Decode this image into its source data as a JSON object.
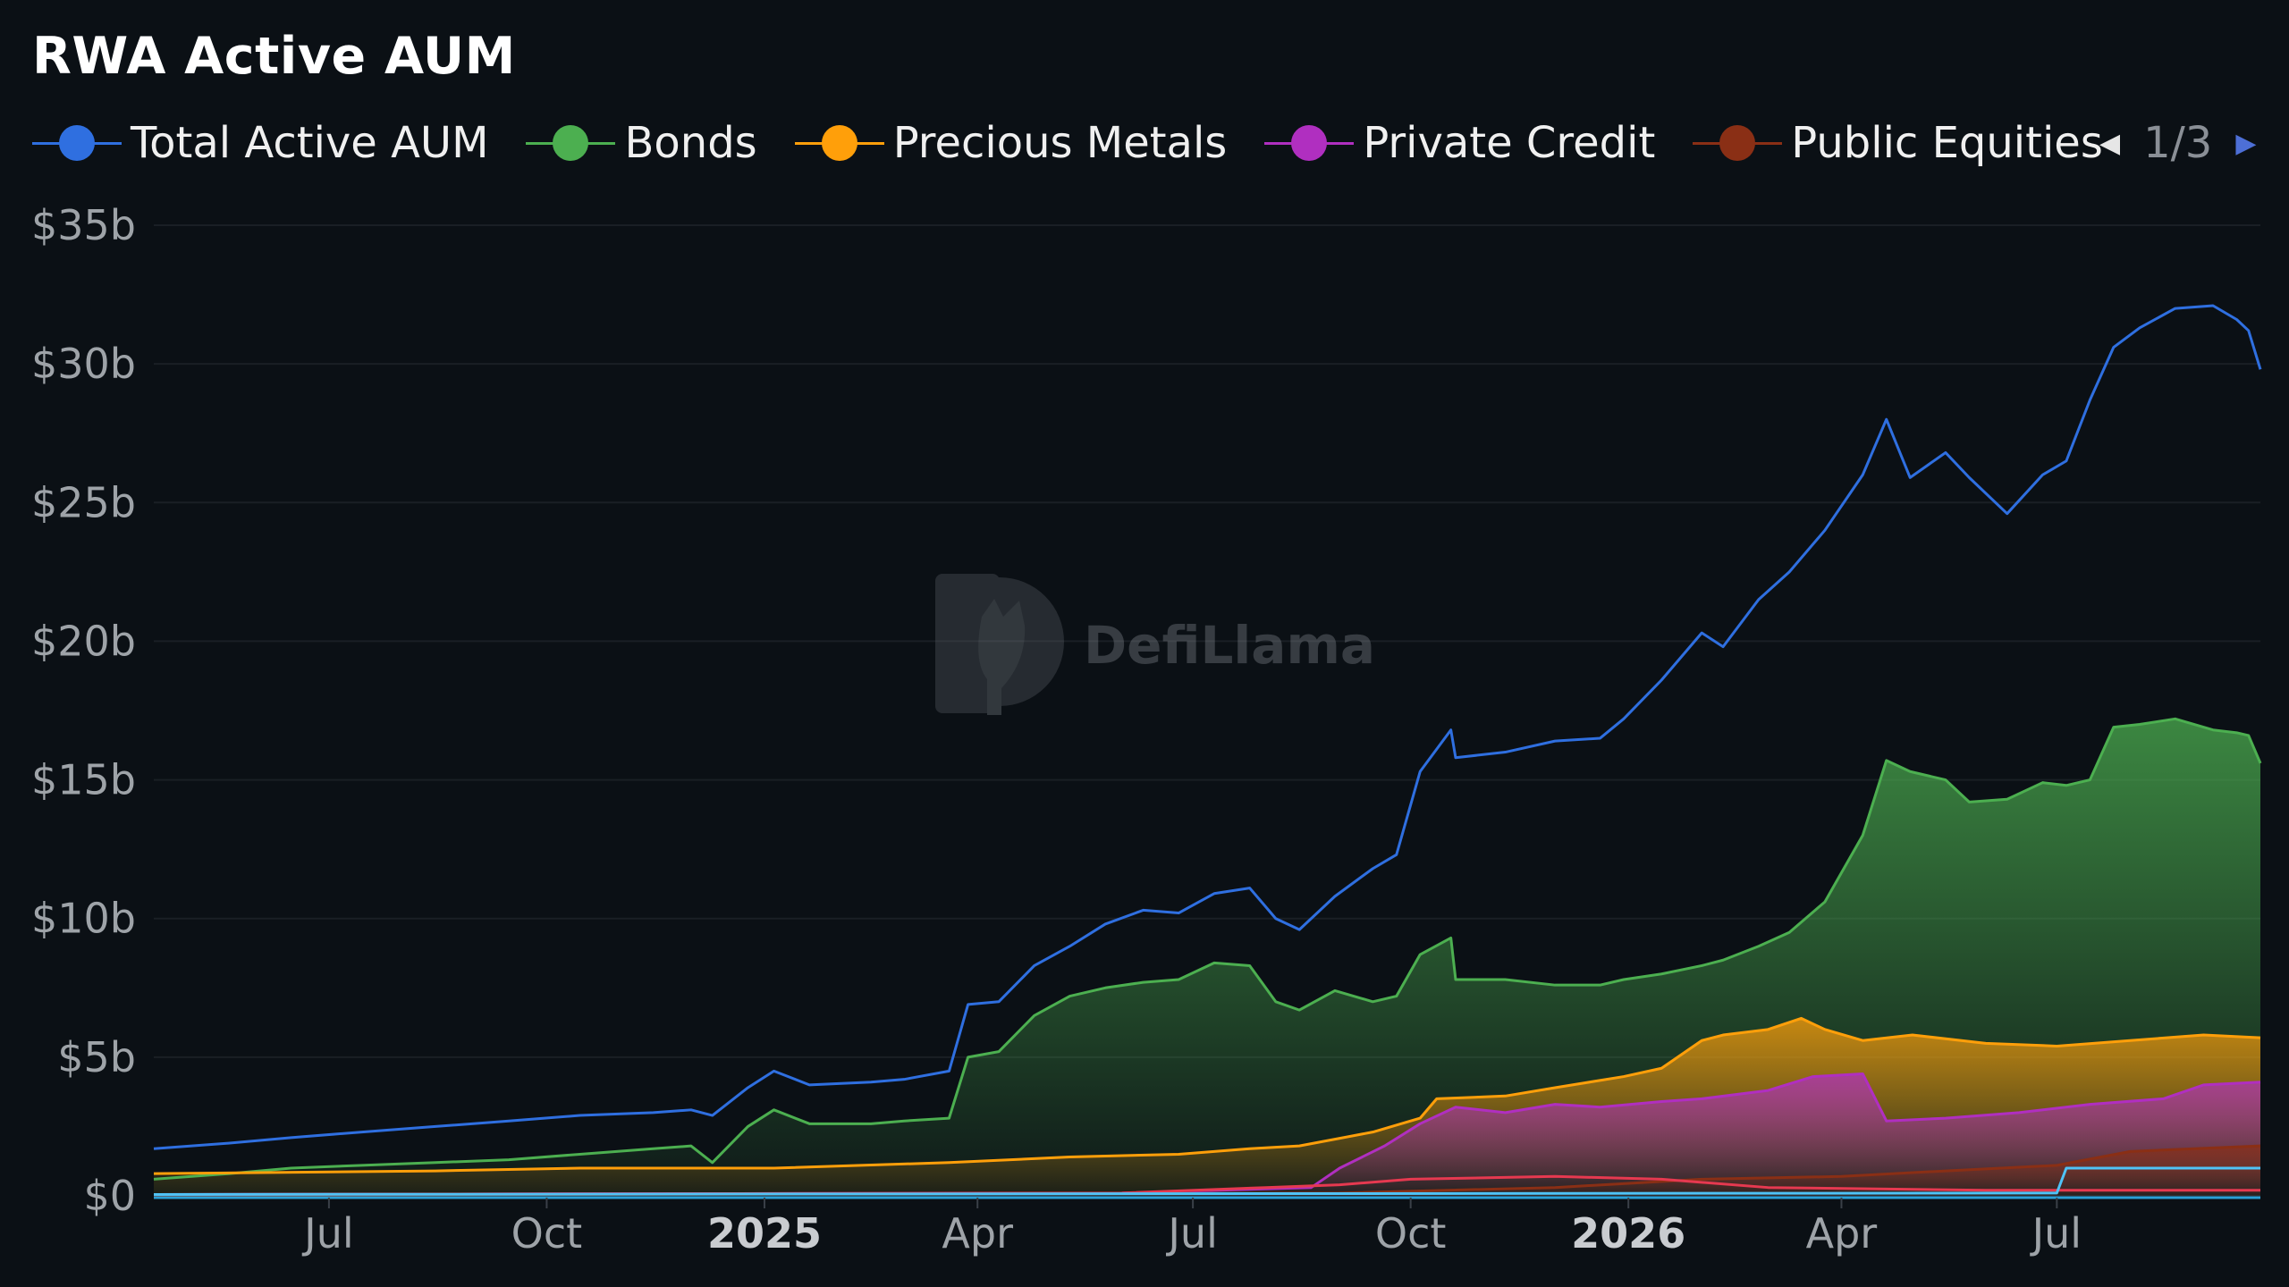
{
  "title": "RWA Active AUM",
  "legend": {
    "items": [
      {
        "label": "Total Active AUM",
        "color": "#2f6fe0"
      },
      {
        "label": "Bonds",
        "color": "#4caf50"
      },
      {
        "label": "Precious Metals",
        "color": "#ff9f0a"
      },
      {
        "label": "Private Credit",
        "color": "#b02fc0"
      },
      {
        "label": "Public Equities",
        "color": "#8a2f15"
      }
    ],
    "page": "1/3"
  },
  "watermark": "DefiLlama",
  "chart_data": {
    "type": "area",
    "title": "RWA Active AUM",
    "xlabel": "",
    "ylabel": "",
    "ylim": [
      0,
      35
    ],
    "grid": true,
    "legend_position": "top",
    "y_ticks": [
      "$0",
      "$5b",
      "$10b",
      "$15b",
      "$20b",
      "$25b",
      "$30b",
      "$35b"
    ],
    "x_ticks": [
      {
        "label": "Jul",
        "date": "2024-07-01",
        "bold": false
      },
      {
        "label": "Oct",
        "date": "2024-10-01",
        "bold": false
      },
      {
        "label": "2025",
        "date": "2025-01-01",
        "bold": true
      },
      {
        "label": "Apr",
        "date": "2025-04-01",
        "bold": false
      },
      {
        "label": "Jul",
        "date": "2025-07-01",
        "bold": false
      },
      {
        "label": "Oct",
        "date": "2025-10-01",
        "bold": false
      },
      {
        "label": "2026",
        "date": "2026-01-01",
        "bold": true
      },
      {
        "label": "Apr",
        "date": "2026-04-01",
        "bold": false
      },
      {
        "label": "Jul",
        "date": "2026-07-01",
        "bold": false
      }
    ],
    "x_range": [
      "2024-04-18",
      "2026-09-25"
    ],
    "series": [
      {
        "name": "Total Active AUM",
        "color": "#2f6fe0",
        "fill": false,
        "points": [
          [
            "2024-04-18",
            1.7
          ],
          [
            "2024-05-20",
            1.9
          ],
          [
            "2024-06-15",
            2.1
          ],
          [
            "2024-07-15",
            2.3
          ],
          [
            "2024-08-15",
            2.5
          ],
          [
            "2024-09-15",
            2.7
          ],
          [
            "2024-10-15",
            2.9
          ],
          [
            "2024-11-15",
            3.0
          ],
          [
            "2024-12-01",
            3.1
          ],
          [
            "2024-12-10",
            2.9
          ],
          [
            "2024-12-25",
            3.9
          ],
          [
            "2025-01-05",
            4.5
          ],
          [
            "2025-01-20",
            4.0
          ],
          [
            "2025-02-15",
            4.1
          ],
          [
            "2025-03-01",
            4.2
          ],
          [
            "2025-03-20",
            4.5
          ],
          [
            "2025-03-28",
            6.9
          ],
          [
            "2025-04-10",
            7.0
          ],
          [
            "2025-04-25",
            8.3
          ],
          [
            "2025-05-10",
            9.0
          ],
          [
            "2025-05-25",
            9.8
          ],
          [
            "2025-06-10",
            10.3
          ],
          [
            "2025-06-25",
            10.2
          ],
          [
            "2025-07-10",
            10.9
          ],
          [
            "2025-07-25",
            11.1
          ],
          [
            "2025-08-05",
            10.0
          ],
          [
            "2025-08-15",
            9.6
          ],
          [
            "2025-08-30",
            10.8
          ],
          [
            "2025-09-15",
            11.8
          ],
          [
            "2025-09-25",
            12.3
          ],
          [
            "2025-10-05",
            15.3
          ],
          [
            "2025-10-18",
            16.8
          ],
          [
            "2025-10-20",
            15.8
          ],
          [
            "2025-11-10",
            16.0
          ],
          [
            "2025-12-01",
            16.4
          ],
          [
            "2025-12-20",
            16.5
          ],
          [
            "2025-12-30",
            17.2
          ],
          [
            "2026-01-15",
            18.6
          ],
          [
            "2026-02-01",
            20.3
          ],
          [
            "2026-02-10",
            19.8
          ],
          [
            "2026-02-25",
            21.5
          ],
          [
            "2026-03-10",
            22.5
          ],
          [
            "2026-03-25",
            24.0
          ],
          [
            "2026-04-10",
            26.0
          ],
          [
            "2026-04-20",
            28.0
          ],
          [
            "2026-04-30",
            25.9
          ],
          [
            "2026-05-15",
            26.8
          ],
          [
            "2026-05-25",
            25.9
          ],
          [
            "2026-06-10",
            24.6
          ],
          [
            "2026-06-25",
            26.0
          ],
          [
            "2026-07-05",
            26.5
          ],
          [
            "2026-07-15",
            28.7
          ],
          [
            "2026-07-25",
            30.6
          ],
          [
            "2026-08-05",
            31.3
          ],
          [
            "2026-08-20",
            32.0
          ],
          [
            "2026-09-05",
            32.1
          ],
          [
            "2026-09-15",
            31.6
          ],
          [
            "2026-09-20",
            31.2
          ],
          [
            "2026-09-25",
            29.8
          ]
        ]
      },
      {
        "name": "Bonds",
        "color": "#4caf50",
        "fill": true,
        "points": [
          [
            "2024-04-18",
            0.6
          ],
          [
            "2024-05-20",
            0.8
          ],
          [
            "2024-06-15",
            1.0
          ],
          [
            "2024-07-15",
            1.1
          ],
          [
            "2024-08-15",
            1.2
          ],
          [
            "2024-09-15",
            1.3
          ],
          [
            "2024-10-15",
            1.5
          ],
          [
            "2024-11-15",
            1.7
          ],
          [
            "2024-12-01",
            1.8
          ],
          [
            "2024-12-10",
            1.2
          ],
          [
            "2024-12-25",
            2.5
          ],
          [
            "2025-01-05",
            3.1
          ],
          [
            "2025-01-20",
            2.6
          ],
          [
            "2025-02-15",
            2.6
          ],
          [
            "2025-03-01",
            2.7
          ],
          [
            "2025-03-20",
            2.8
          ],
          [
            "2025-03-28",
            5.0
          ],
          [
            "2025-04-10",
            5.2
          ],
          [
            "2025-04-25",
            6.5
          ],
          [
            "2025-05-10",
            7.2
          ],
          [
            "2025-05-25",
            7.5
          ],
          [
            "2025-06-10",
            7.7
          ],
          [
            "2025-06-25",
            7.8
          ],
          [
            "2025-07-10",
            8.4
          ],
          [
            "2025-07-25",
            8.3
          ],
          [
            "2025-08-05",
            7.0
          ],
          [
            "2025-08-15",
            6.7
          ],
          [
            "2025-08-30",
            7.4
          ],
          [
            "2025-09-15",
            7.0
          ],
          [
            "2025-09-25",
            7.2
          ],
          [
            "2025-10-05",
            8.7
          ],
          [
            "2025-10-18",
            9.3
          ],
          [
            "2025-10-20",
            7.8
          ],
          [
            "2025-11-10",
            7.8
          ],
          [
            "2025-12-01",
            7.6
          ],
          [
            "2025-12-20",
            7.6
          ],
          [
            "2025-12-30",
            7.8
          ],
          [
            "2026-01-15",
            8.0
          ],
          [
            "2026-02-01",
            8.3
          ],
          [
            "2026-02-10",
            8.5
          ],
          [
            "2026-02-25",
            9.0
          ],
          [
            "2026-03-10",
            9.5
          ],
          [
            "2026-03-25",
            10.6
          ],
          [
            "2026-04-10",
            13.0
          ],
          [
            "2026-04-20",
            15.7
          ],
          [
            "2026-04-30",
            15.3
          ],
          [
            "2026-05-15",
            15.0
          ],
          [
            "2026-05-25",
            14.2
          ],
          [
            "2026-06-10",
            14.3
          ],
          [
            "2026-06-25",
            14.9
          ],
          [
            "2026-07-05",
            14.8
          ],
          [
            "2026-07-15",
            15.0
          ],
          [
            "2026-07-25",
            16.9
          ],
          [
            "2026-08-05",
            17.0
          ],
          [
            "2026-08-20",
            17.2
          ],
          [
            "2026-09-05",
            16.8
          ],
          [
            "2026-09-15",
            16.7
          ],
          [
            "2026-09-20",
            16.6
          ],
          [
            "2026-09-25",
            15.6
          ]
        ]
      },
      {
        "name": "Precious Metals",
        "color": "#ff9f0a",
        "fill": true,
        "points": [
          [
            "2024-04-18",
            0.8
          ],
          [
            "2024-08-15",
            0.9
          ],
          [
            "2024-10-15",
            1.0
          ],
          [
            "2025-01-05",
            1.0
          ],
          [
            "2025-03-20",
            1.2
          ],
          [
            "2025-05-10",
            1.4
          ],
          [
            "2025-06-25",
            1.5
          ],
          [
            "2025-07-25",
            1.7
          ],
          [
            "2025-08-15",
            1.8
          ],
          [
            "2025-09-15",
            2.3
          ],
          [
            "2025-10-05",
            2.8
          ],
          [
            "2025-10-12",
            3.5
          ],
          [
            "2025-11-10",
            3.6
          ],
          [
            "2025-12-01",
            3.9
          ],
          [
            "2025-12-30",
            4.3
          ],
          [
            "2026-01-15",
            4.6
          ],
          [
            "2026-02-01",
            5.6
          ],
          [
            "2026-02-10",
            5.8
          ],
          [
            "2026-03-01",
            6.0
          ],
          [
            "2026-03-15",
            6.4
          ],
          [
            "2026-03-25",
            6.0
          ],
          [
            "2026-04-10",
            5.6
          ],
          [
            "2026-05-01",
            5.8
          ],
          [
            "2026-06-01",
            5.5
          ],
          [
            "2026-07-01",
            5.4
          ],
          [
            "2026-08-01",
            5.6
          ],
          [
            "2026-09-01",
            5.8
          ],
          [
            "2026-09-25",
            5.7
          ]
        ]
      },
      {
        "name": "Private Credit",
        "color": "#b02fc0",
        "fill": true,
        "points": [
          [
            "2024-04-18",
            0.05
          ],
          [
            "2025-06-01",
            0.1
          ],
          [
            "2025-08-20",
            0.3
          ],
          [
            "2025-09-01",
            1.0
          ],
          [
            "2025-09-20",
            1.8
          ],
          [
            "2025-10-05",
            2.6
          ],
          [
            "2025-10-20",
            3.2
          ],
          [
            "2025-11-10",
            3.0
          ],
          [
            "2025-12-01",
            3.3
          ],
          [
            "2025-12-20",
            3.2
          ],
          [
            "2026-01-15",
            3.4
          ],
          [
            "2026-02-01",
            3.5
          ],
          [
            "2026-03-01",
            3.8
          ],
          [
            "2026-03-20",
            4.3
          ],
          [
            "2026-04-10",
            4.4
          ],
          [
            "2026-04-20",
            2.7
          ],
          [
            "2026-05-15",
            2.8
          ],
          [
            "2026-06-15",
            3.0
          ],
          [
            "2026-07-15",
            3.3
          ],
          [
            "2026-08-15",
            3.5
          ],
          [
            "2026-09-01",
            4.0
          ],
          [
            "2026-09-25",
            4.1
          ]
        ]
      },
      {
        "name": "Public Equities",
        "color": "#8a2f15",
        "fill": true,
        "points": [
          [
            "2024-04-18",
            0.02
          ],
          [
            "2025-09-01",
            0.1
          ],
          [
            "2025-12-01",
            0.3
          ],
          [
            "2026-02-01",
            0.6
          ],
          [
            "2026-04-01",
            0.7
          ],
          [
            "2026-05-15",
            0.9
          ],
          [
            "2026-07-01",
            1.1
          ],
          [
            "2026-08-01",
            1.6
          ],
          [
            "2026-09-25",
            1.8
          ]
        ]
      },
      {
        "name": "",
        "color": "#e63950",
        "fill": false,
        "points": [
          [
            "2024-04-18",
            0.05
          ],
          [
            "2025-06-01",
            0.1
          ],
          [
            "2025-08-01",
            0.3
          ],
          [
            "2025-09-01",
            0.4
          ],
          [
            "2025-10-01",
            0.6
          ],
          [
            "2025-12-01",
            0.7
          ],
          [
            "2026-01-15",
            0.6
          ],
          [
            "2026-03-01",
            0.3
          ],
          [
            "2026-06-01",
            0.2
          ],
          [
            "2026-09-25",
            0.2
          ]
        ]
      },
      {
        "name": "",
        "color": "#4fc3f7",
        "fill": false,
        "points": [
          [
            "2024-04-18",
            0.05
          ],
          [
            "2026-07-01",
            0.1
          ],
          [
            "2026-07-05",
            1.0
          ],
          [
            "2026-09-25",
            1.0
          ]
        ]
      }
    ]
  }
}
